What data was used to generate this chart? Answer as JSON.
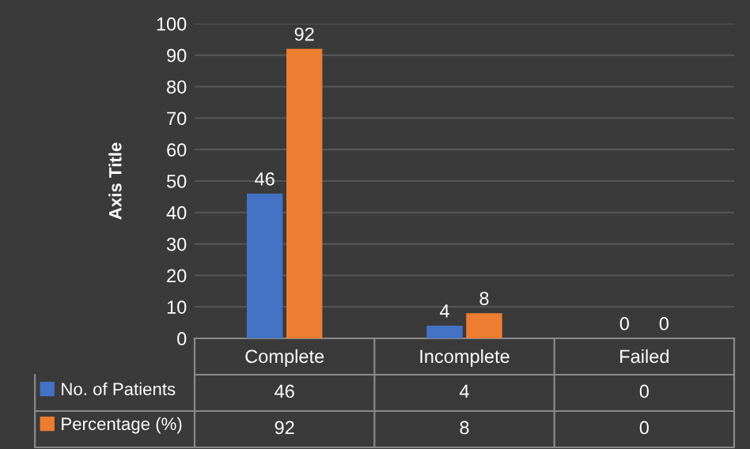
{
  "chart_data": {
    "type": "bar",
    "ylabel": "Axis Title",
    "categories": [
      "Complete",
      "Incomplete",
      "Failed"
    ],
    "series": [
      {
        "name": "No. of Patients",
        "color": "#4472c4",
        "values": [
          46,
          4,
          0
        ]
      },
      {
        "name": "Percentage (%)",
        "color": "#ed7d31",
        "values": [
          92,
          8,
          0
        ]
      }
    ],
    "annotations": [
      {
        "text": "46",
        "x": "Complete",
        "y": 46
      },
      {
        "text": "92",
        "x": "Complete",
        "y": 92
      },
      {
        "text": "4",
        "x": "Incomplete",
        "y": 4
      },
      {
        "text": "8",
        "x": "Incomplete",
        "y": 8
      },
      {
        "text": "0",
        "x": "Failed",
        "y": 0
      },
      {
        "text": "0",
        "x": "Failed",
        "y": 0
      }
    ],
    "ylim": [
      0,
      100
    ],
    "yticks": [
      0,
      10,
      20,
      30,
      40,
      50,
      60,
      70,
      80,
      90,
      100
    ],
    "grid": "y",
    "legend": "bottom",
    "data_labels": true
  }
}
